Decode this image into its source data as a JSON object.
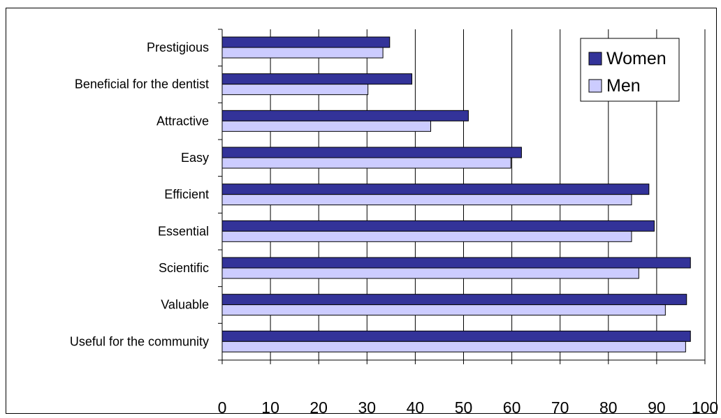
{
  "chart_data": {
    "type": "bar",
    "orientation": "horizontal",
    "categories": [
      "Prestigious",
      "Beneficial for the dentist",
      "Attractive",
      "Easy",
      "Efficient",
      "Essential",
      "Scientific",
      "Valuable",
      "Useful for the community"
    ],
    "series": [
      {
        "name": "Women",
        "color": "#333399",
        "values": [
          34.7,
          39.3,
          51.0,
          62.0,
          88.4,
          89.5,
          97.0,
          96.2,
          97.0
        ]
      },
      {
        "name": "Men",
        "color": "#ccccff",
        "values": [
          33.3,
          30.2,
          43.2,
          59.8,
          84.8,
          84.8,
          86.3,
          91.8,
          96.0
        ]
      }
    ],
    "xlim": [
      0,
      100
    ],
    "xticks": [
      "0",
      "10",
      "20",
      "30",
      "40",
      "50",
      "60",
      "70",
      "80",
      "90",
      "100"
    ],
    "grid": "vertical",
    "legend_position": "top-right"
  }
}
